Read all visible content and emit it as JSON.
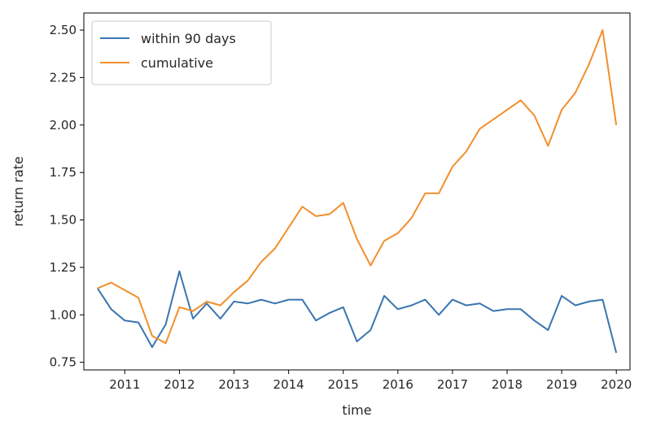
{
  "chart_data": {
    "type": "line",
    "xlabel": "time",
    "ylabel": "return rate",
    "xlim": [
      2010.25,
      2020.25
    ],
    "ylim": [
      0.71,
      2.59
    ],
    "x_ticks": [
      2011,
      2012,
      2013,
      2014,
      2015,
      2016,
      2017,
      2018,
      2019,
      2020
    ],
    "x_tick_labels": [
      "2011",
      "2012",
      "2013",
      "2014",
      "2015",
      "2016",
      "2017",
      "2018",
      "2019",
      "2020"
    ],
    "y_ticks": [
      0.75,
      1.0,
      1.25,
      1.5,
      1.75,
      2.0,
      2.25,
      2.5
    ],
    "y_tick_labels": [
      "0.75",
      "1.00",
      "1.25",
      "1.50",
      "1.75",
      "2.00",
      "2.25",
      "2.50"
    ],
    "legend_position": "upper-left",
    "grid": false,
    "x": [
      2010.5,
      2010.75,
      2011.0,
      2011.25,
      2011.5,
      2011.75,
      2012.0,
      2012.25,
      2012.5,
      2012.75,
      2013.0,
      2013.25,
      2013.5,
      2013.75,
      2014.0,
      2014.25,
      2014.5,
      2014.75,
      2015.0,
      2015.25,
      2015.5,
      2015.75,
      2016.0,
      2016.25,
      2016.5,
      2016.75,
      2017.0,
      2017.25,
      2017.5,
      2017.75,
      2018.0,
      2018.25,
      2018.5,
      2018.75,
      2019.0,
      2019.25,
      2019.5,
      2019.75,
      2020.0
    ],
    "series": [
      {
        "name": "within 90 days",
        "color": "#3a75b0",
        "values": [
          1.14,
          1.03,
          0.97,
          0.96,
          0.83,
          0.95,
          1.23,
          0.98,
          1.06,
          0.98,
          1.07,
          1.06,
          1.08,
          1.06,
          1.08,
          1.08,
          0.97,
          1.01,
          1.04,
          0.86,
          0.92,
          1.1,
          1.03,
          1.05,
          1.08,
          1.0,
          1.08,
          1.05,
          1.06,
          1.02,
          1.03,
          1.03,
          0.97,
          0.92,
          1.1,
          1.05,
          1.07,
          1.08,
          0.8
        ]
      },
      {
        "name": "cumulative",
        "color": "#f28e2b",
        "values": [
          1.14,
          1.17,
          1.13,
          1.09,
          0.89,
          0.85,
          1.04,
          1.02,
          1.07,
          1.05,
          1.12,
          1.18,
          1.28,
          1.35,
          1.46,
          1.57,
          1.52,
          1.53,
          1.59,
          1.4,
          1.26,
          1.39,
          1.43,
          1.51,
          1.64,
          1.64,
          1.78,
          1.86,
          1.98,
          2.03,
          2.08,
          2.13,
          2.05,
          1.89,
          2.08,
          2.17,
          2.32,
          2.5,
          2.0
        ]
      }
    ]
  }
}
